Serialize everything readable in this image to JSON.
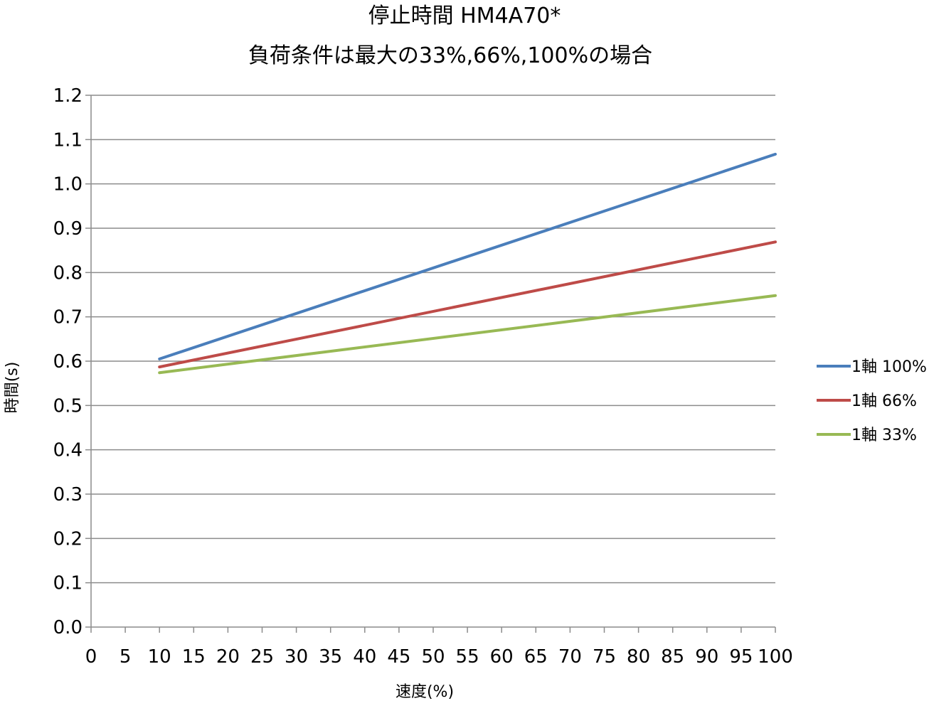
{
  "chart_data": {
    "type": "line",
    "title": "停止時間 HM4A70*",
    "subtitle": "負荷条件は最大の33%,66%,100%の場合",
    "xlabel": "速度(%)",
    "ylabel": "時間(s)",
    "xlim": [
      0,
      100
    ],
    "ylim": [
      0,
      1.2
    ],
    "x_ticks": [
      "0",
      "5",
      "10",
      "15",
      "20",
      "25",
      "30",
      "35",
      "40",
      "45",
      "50",
      "55",
      "60",
      "65",
      "70",
      "75",
      "80",
      "85",
      "90",
      "95",
      "100"
    ],
    "y_ticks": [
      "0.0",
      "0.1",
      "0.2",
      "0.3",
      "0.4",
      "0.5",
      "0.6",
      "0.7",
      "0.8",
      "0.9",
      "1.0",
      "1.1",
      "1.2"
    ],
    "grid": "horizontal",
    "legend_position": "right",
    "series": [
      {
        "name": "1軸 100%",
        "color": "#4a7ebb",
        "x": [
          10,
          100
        ],
        "y": [
          0.605,
          1.067
        ]
      },
      {
        "name": "1軸 66%",
        "color": "#be4b48",
        "x": [
          10,
          100
        ],
        "y": [
          0.587,
          0.869
        ]
      },
      {
        "name": "1軸 33%",
        "color": "#98b954",
        "x": [
          10,
          100
        ],
        "y": [
          0.574,
          0.748
        ]
      }
    ]
  }
}
